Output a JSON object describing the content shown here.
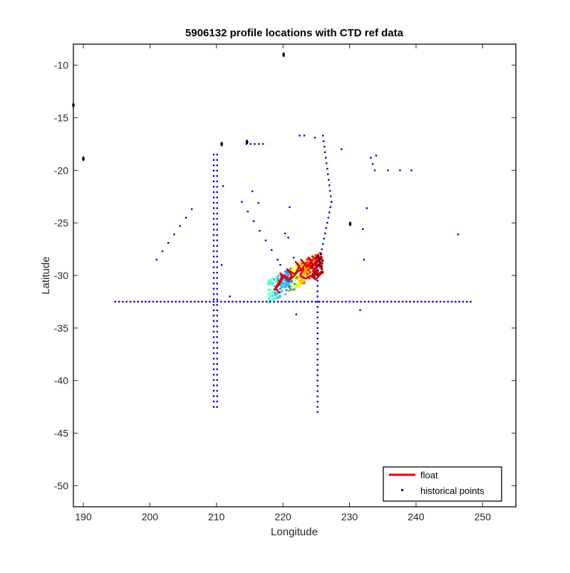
{
  "chart_data": {
    "type": "scatter",
    "title": "5906132 profile locations with CTD ref data",
    "xlabel": "Longitude",
    "ylabel": "Latitude",
    "xlim": [
      188.5,
      255
    ],
    "ylim": [
      -52,
      -8
    ],
    "xticks": [
      190,
      200,
      210,
      220,
      230,
      240,
      250
    ],
    "yticks": [
      -10,
      -15,
      -20,
      -25,
      -30,
      -35,
      -40,
      -45,
      -50
    ],
    "grid": false,
    "legend_position": "bottom-right",
    "legend": [
      {
        "label": "float",
        "color": "#e00000",
        "marker": "line"
      },
      {
        "label": "historical points",
        "color": "#0000dd",
        "marker": "point"
      }
    ],
    "colors": {
      "float": "#e00000",
      "historical": "#0000dd",
      "land": "#000000",
      "ref_data_colormap": [
        "#66ffcc",
        "#33bbff",
        "#1e90ff",
        "#ffff00",
        "#ffa500",
        "#ff2200",
        "#990000"
      ]
    },
    "series": [
      {
        "name": "float",
        "type": "line",
        "x": [
          218.6,
          219.4,
          220.0,
          219.6,
          220.8,
          221.3,
          220.6,
          221.8,
          222.5,
          221.9,
          222.8,
          223.3,
          222.7,
          223.6,
          224.4,
          223.8,
          224.6,
          225.2,
          224.8,
          225.6,
          224.9,
          224.2,
          223.4,
          222.6,
          223.1,
          222.2,
          221.6,
          220.9,
          220.1,
          219.4,
          218.9,
          219.5
        ],
        "y": [
          -31.4,
          -30.9,
          -30.2,
          -29.8,
          -30.5,
          -30.0,
          -29.4,
          -29.9,
          -29.1,
          -28.7,
          -29.5,
          -28.9,
          -28.5,
          -29.2,
          -28.6,
          -28.3,
          -29.0,
          -28.7,
          -29.6,
          -29.9,
          -30.4,
          -30.0,
          -30.3,
          -30.0,
          -29.4,
          -29.6,
          -30.1,
          -30.4,
          -30.0,
          -30.6,
          -31.2,
          -31.7
        ]
      }
    ],
    "historical_groups": [
      {
        "kind": "line",
        "from": [
          194.8,
          -32.5
        ],
        "to": [
          248.2,
          -32.5
        ],
        "n": 95
      },
      {
        "kind": "line",
        "from": [
          209.6,
          -18.5
        ],
        "to": [
          209.6,
          -42.5
        ],
        "n": 48
      },
      {
        "kind": "line",
        "from": [
          210.1,
          -18.5
        ],
        "to": [
          210.1,
          -42.5
        ],
        "n": 48
      },
      {
        "kind": "line",
        "from": [
          225.2,
          -43.0
        ],
        "to": [
          225.2,
          -29.5
        ],
        "n": 28
      },
      {
        "kind": "line",
        "from": [
          225.2,
          -29.5
        ],
        "to": [
          227.3,
          -23.0
        ],
        "n": 14
      },
      {
        "kind": "line",
        "from": [
          227.3,
          -23.0
        ],
        "to": [
          226.0,
          -16.7
        ],
        "n": 13
      },
      {
        "kind": "line",
        "from": [
          201.0,
          -28.5
        ],
        "to": [
          206.3,
          -23.7
        ],
        "n": 7
      },
      {
        "kind": "line",
        "from": [
          213.8,
          -23.0
        ],
        "to": [
          219.2,
          -28.5
        ],
        "n": 7
      },
      {
        "kind": "line",
        "from": [
          214.5,
          -17.5
        ],
        "to": [
          217.0,
          -17.5
        ],
        "n": 5
      },
      {
        "kind": "line",
        "from": [
          233.2,
          -18.8
        ],
        "to": [
          233.8,
          -20.0
        ],
        "n": 3
      },
      {
        "kind": "points",
        "x": [
          215.4,
          216.3,
          211.0,
          210.8,
          212.0,
          221.0,
          222.0,
          224.8,
          228.8,
          232.0,
          232.6,
          232.2,
          231.6,
          235.8,
          237.6,
          239.3,
          246.3,
          234.0,
          222.5,
          223.2,
          220.8,
          221.6,
          220.3,
          219.6
        ],
        "y": [
          -22.0,
          -23.1,
          -21.5,
          -29.0,
          -32.0,
          -23.5,
          -33.7,
          -16.9,
          -18.0,
          -25.6,
          -23.6,
          -28.5,
          -33.3,
          -20.0,
          -20.0,
          -20.0,
          -26.1,
          -18.6,
          -16.7,
          -16.7,
          -26.4,
          -28.3,
          -26.0,
          -29.0
        ]
      }
    ],
    "ref_data_region": {
      "lon": [
        217.8,
        226.0
      ],
      "lat": [
        -32.0,
        -28.4
      ]
    },
    "land_features": [
      {
        "lon": 190.0,
        "lat": -18.9
      },
      {
        "lon": 210.8,
        "lat": -17.5
      },
      {
        "lon": 214.6,
        "lat": -17.3
      },
      {
        "lon": 220.1,
        "lat": -9.0
      },
      {
        "lon": 230.1,
        "lat": -25.1
      },
      {
        "lon": 188.5,
        "lat": -13.8
      }
    ]
  }
}
